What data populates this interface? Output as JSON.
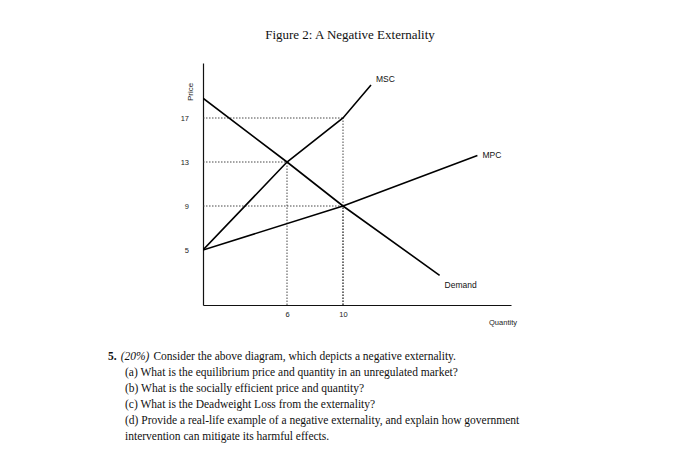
{
  "chart_data": {
    "type": "line",
    "title": "Figure 2: A Negative Externality",
    "x_label": "Quantity",
    "y_label": "Price",
    "xlim": [
      0,
      22
    ],
    "ylim": [
      0,
      22
    ],
    "xticks": [
      6,
      10
    ],
    "yticks": [
      5,
      9,
      13,
      17
    ],
    "grid": false,
    "series": [
      {
        "name": "MSC",
        "color": "#000000",
        "line_style": "solid",
        "x": [
          0,
          6,
          10,
          12
        ],
        "values": [
          5,
          13,
          17,
          20
        ]
      },
      {
        "name": "MPC",
        "color": "#000000",
        "line_style": "solid",
        "x": [
          0,
          10,
          19.6
        ],
        "values": [
          5,
          9,
          13.6
        ]
      },
      {
        "name": "Demand",
        "color": "#000000",
        "line_style": "solid",
        "x": [
          0,
          6,
          10,
          16.9
        ],
        "values": [
          18.8,
          13,
          9,
          2.7
        ]
      }
    ],
    "guides": [
      {
        "x": 6,
        "y": 13
      },
      {
        "x": 10,
        "y": 9
      },
      {
        "x": 10,
        "y": 17
      }
    ]
  },
  "question": {
    "number": "5.",
    "weight": "(20%)",
    "text": "Consider the above diagram, which depicts a negative externality.",
    "parts": [
      [
        "(a) What is the equilibrium price and quantity in an unregulated market?"
      ],
      [
        "(b) What is the socially efficient price and quantity?"
      ],
      [
        "(c) What is the Deadweight Loss from the externality?"
      ],
      [
        "(d) Provide a real-life example of a negative externality, and explain how government",
        "intervention can mitigate its harmful effects."
      ]
    ]
  }
}
